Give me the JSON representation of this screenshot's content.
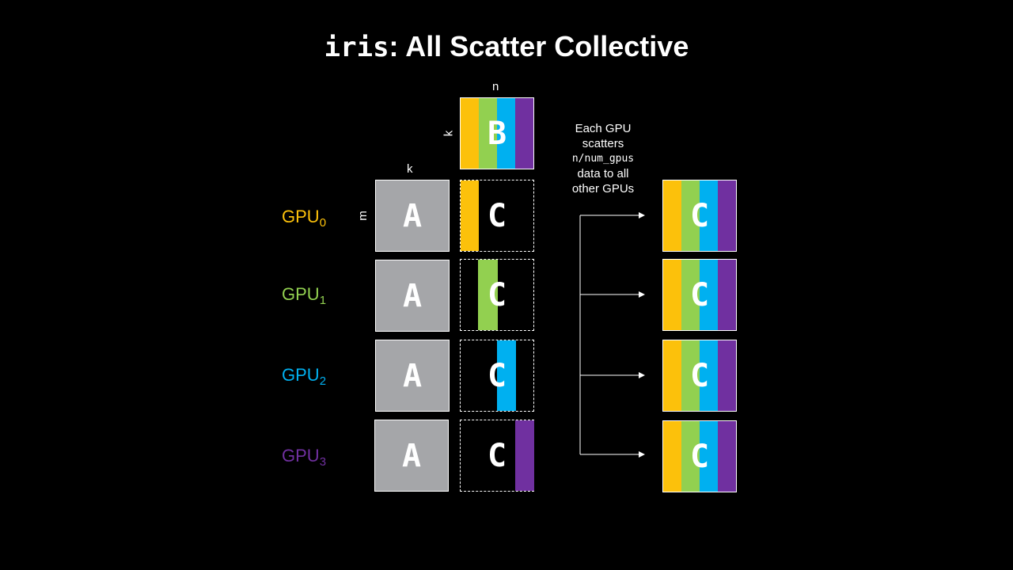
{
  "title": {
    "code": "iris",
    "rest": ": All Scatter Collective"
  },
  "labels": {
    "n": "n",
    "k_top": "k",
    "k_left": "k",
    "m": "m"
  },
  "matrices": {
    "a": "A",
    "b": "B",
    "c": "C"
  },
  "gpus": [
    {
      "name": "GPU",
      "index": "0",
      "color": "#fcc10b"
    },
    {
      "name": "GPU",
      "index": "1",
      "color": "#92d050"
    },
    {
      "name": "GPU",
      "index": "2",
      "color": "#00b0f0"
    },
    {
      "name": "GPU",
      "index": "3",
      "color": "#7030a0"
    }
  ],
  "note": {
    "line1": "Each GPU",
    "line2": "scatters",
    "code": "n/num_gpus",
    "line3": "data to all",
    "line4": "other GPUs"
  },
  "colors": {
    "background": "#000000",
    "matrix_a": "#a5a6a9",
    "yellow": "#fcc10b",
    "green": "#92d050",
    "blue": "#00b0f0",
    "purple": "#7030a0"
  }
}
